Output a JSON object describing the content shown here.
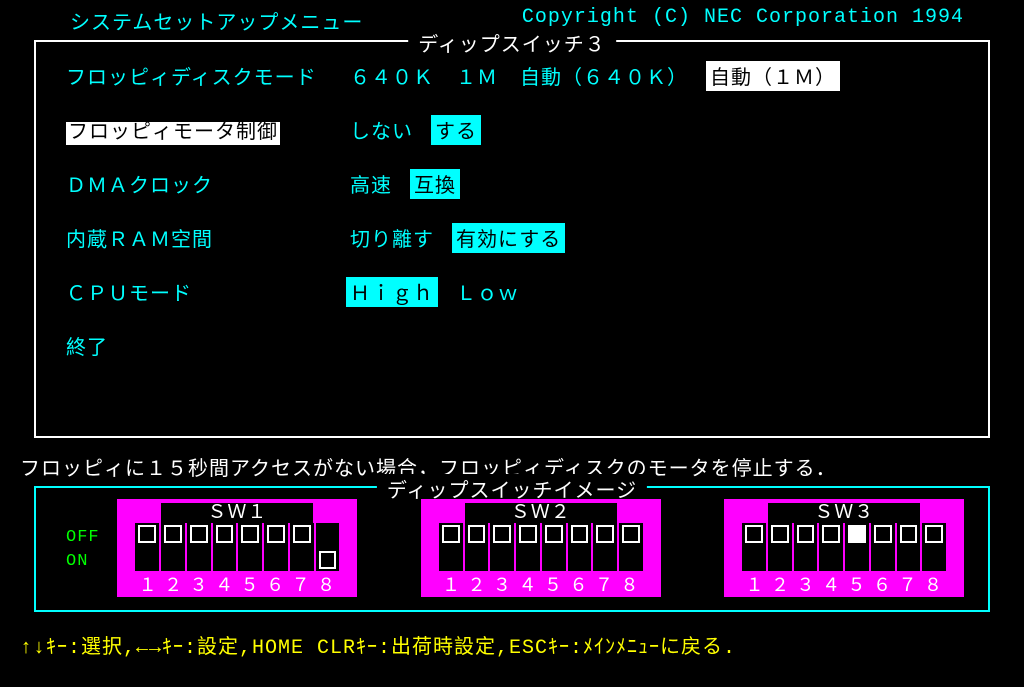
{
  "header": {
    "title": "システムセットアップメニュー",
    "copyright": "Copyright (C) NEC Corporation 1994"
  },
  "panel": {
    "title": "ディップスイッチ３",
    "rows": [
      {
        "label": "フロッピィディスクモード",
        "selected": false,
        "options": [
          {
            "text": "６４０Ｋ",
            "state": "normal"
          },
          {
            "text": "１Ｍ",
            "state": "normal"
          },
          {
            "text": "自動（６４０Ｋ）",
            "state": "normal"
          },
          {
            "text": "自動（１Ｍ）",
            "state": "focus"
          }
        ]
      },
      {
        "label": "フロッピィモータ制御",
        "selected": true,
        "options": [
          {
            "text": "しない",
            "state": "normal"
          },
          {
            "text": "する",
            "state": "active"
          }
        ]
      },
      {
        "label": "ＤＭＡクロック",
        "selected": false,
        "options": [
          {
            "text": "高速",
            "state": "normal"
          },
          {
            "text": "互換",
            "state": "active"
          }
        ]
      },
      {
        "label": "内蔵ＲＡＭ空間",
        "selected": false,
        "options": [
          {
            "text": "切り離す",
            "state": "normal"
          },
          {
            "text": "有効にする",
            "state": "active"
          }
        ]
      },
      {
        "label": "ＣＰＵモード",
        "selected": false,
        "options": [
          {
            "text": "Ｈｉｇｈ",
            "state": "active"
          },
          {
            "text": "Ｌｏｗ",
            "state": "normal"
          }
        ]
      },
      {
        "label": "終了",
        "selected": false,
        "options": []
      }
    ]
  },
  "help_text": "フロッピィに１５秒間アクセスがない場合，フロッピィディスクのモータを停止する．",
  "dip": {
    "title": "ディップスイッチイメージ",
    "off_label": "OFF",
    "on_label": "ON",
    "blocks": [
      {
        "name": "ＳＷ１",
        "switches": [
          "off",
          "off",
          "off",
          "off",
          "off",
          "off",
          "off",
          "on"
        ],
        "numbers": [
          "１",
          "２",
          "３",
          "４",
          "５",
          "６",
          "７",
          "８"
        ]
      },
      {
        "name": "ＳＷ２",
        "switches": [
          "off",
          "off",
          "off",
          "off",
          "off",
          "off",
          "off",
          "off"
        ],
        "numbers": [
          "１",
          "２",
          "３",
          "４",
          "５",
          "６",
          "７",
          "８"
        ]
      },
      {
        "name": "ＳＷ３",
        "switches": [
          "off",
          "off",
          "off",
          "off",
          "on-filled",
          "off",
          "off",
          "off"
        ],
        "numbers": [
          "１",
          "２",
          "３",
          "４",
          "５",
          "６",
          "７",
          "８"
        ]
      }
    ]
  },
  "footer": "↑↓ｷｰ:選択,←→ｷｰ:設定,HOME CLRｷｰ:出荷時設定,ESCｷｰ:ﾒｲﾝﾒﾆｭｰに戻る.",
  "colors": {
    "background": "#000000",
    "cyan": "#00ffff",
    "white": "#ffffff",
    "magenta": "#ff00ff",
    "green": "#00ff00",
    "yellow": "#ffff00"
  }
}
